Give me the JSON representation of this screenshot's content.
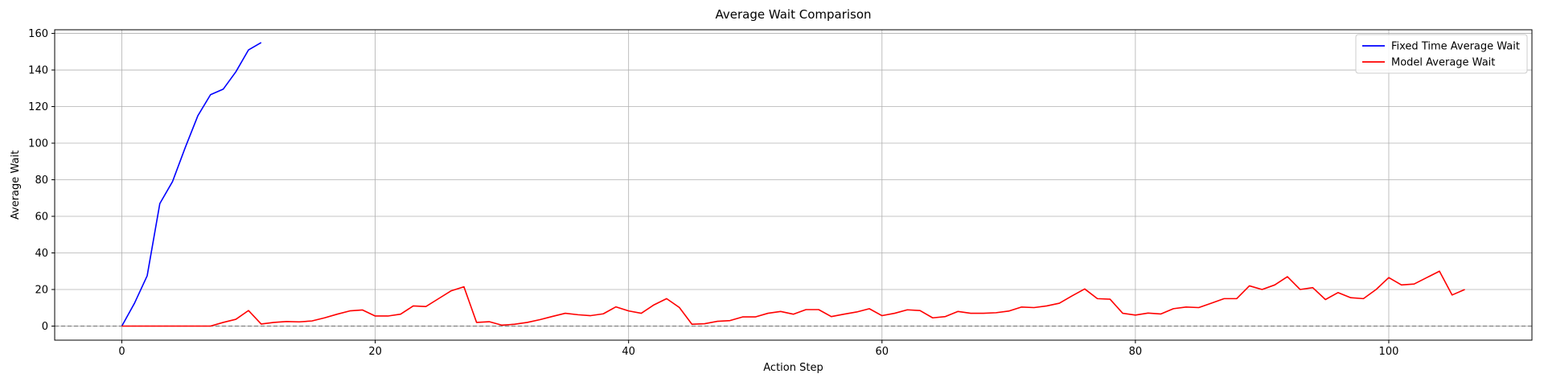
{
  "chart_data": {
    "type": "line",
    "title": "Average Wait Comparison",
    "xlabel": "Action Step",
    "ylabel": "Average Wait",
    "xlim": [
      -5.3,
      111.3
    ],
    "ylim": [
      -7.7,
      162
    ],
    "xticks": [
      0,
      20,
      40,
      60,
      80,
      100
    ],
    "yticks": [
      0,
      20,
      40,
      60,
      80,
      100,
      120,
      140,
      160
    ],
    "grid": true,
    "legend_position": "top-right",
    "reference_line": {
      "y": 0,
      "style": "dashed",
      "color": "#808080"
    },
    "series": [
      {
        "name": "Fixed Time Average Wait",
        "color": "#0000ff",
        "x": [
          0,
          1,
          2,
          3,
          4,
          5,
          6,
          7,
          8,
          9,
          10,
          11
        ],
        "values": [
          0,
          12.5,
          27.5,
          67,
          79,
          97.5,
          115,
          126.5,
          129.5,
          139,
          151,
          155
        ]
      },
      {
        "name": "Model Average Wait",
        "color": "#ff0000",
        "x": [
          0,
          1,
          2,
          3,
          4,
          5,
          6,
          7,
          8,
          9,
          10,
          11,
          12,
          13,
          14,
          15,
          16,
          17,
          18,
          19,
          20,
          21,
          22,
          23,
          24,
          25,
          26,
          27,
          28,
          29,
          30,
          31,
          32,
          33,
          34,
          35,
          36,
          37,
          38,
          39,
          40,
          41,
          42,
          43,
          44,
          45,
          46,
          47,
          48,
          49,
          50,
          51,
          52,
          53,
          54,
          55,
          56,
          57,
          58,
          59,
          60,
          61,
          62,
          63,
          64,
          65,
          66,
          67,
          68,
          69,
          70,
          71,
          72,
          73,
          74,
          75,
          76,
          77,
          78,
          79,
          80,
          81,
          82,
          83,
          84,
          85,
          86,
          87,
          88,
          89,
          90,
          91,
          92,
          93,
          94,
          95,
          96,
          97,
          98,
          99,
          100,
          101,
          102,
          103,
          104,
          105,
          106
        ],
        "values": [
          0,
          0,
          0,
          0,
          0,
          0,
          0,
          0,
          2,
          3.7,
          8.5,
          1.1,
          2,
          2.5,
          2.3,
          2.8,
          4.5,
          6.5,
          8.3,
          8.8,
          5.5,
          5.5,
          6.5,
          11,
          10.7,
          15,
          19.3,
          21.5,
          2,
          2.4,
          0.5,
          1,
          2,
          3.5,
          5.3,
          7,
          6.2,
          5.7,
          6.7,
          10.5,
          8.3,
          7,
          11.6,
          15,
          10.2,
          1,
          1.3,
          2.6,
          3,
          5,
          5,
          7,
          8,
          6.5,
          9,
          9,
          5.2,
          6.5,
          7.7,
          9.5,
          5.7,
          7,
          8.9,
          8.5,
          4.5,
          5.2,
          8,
          7,
          7,
          7.3,
          8.2,
          10.4,
          10.1,
          11,
          12.5,
          16.5,
          20.3,
          15,
          14.7,
          7,
          6,
          7.1,
          6.6,
          9.5,
          10.4,
          10.1,
          12.5,
          15,
          15,
          22,
          20,
          22.5,
          27,
          20,
          21,
          14.5,
          18.3,
          15.5,
          15,
          20,
          26.5,
          22.5,
          23,
          26.5,
          30,
          17,
          20
        ]
      }
    ]
  }
}
